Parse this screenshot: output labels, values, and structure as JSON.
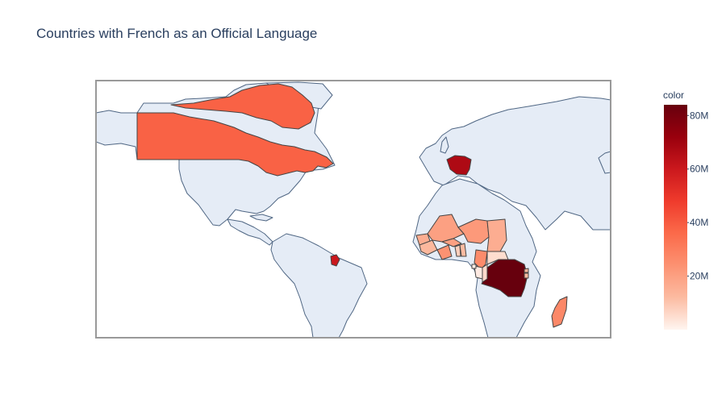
{
  "chart_data": {
    "type": "choropleth",
    "title": "Countries with French as an Official Language",
    "projection": "equirectangular",
    "colorscale": "Reds",
    "colorbar": {
      "title": "color",
      "range": [
        0,
        84000000
      ],
      "ticks": [
        {
          "value": 20000000,
          "label": "20M"
        },
        {
          "value": 40000000,
          "label": "40M"
        },
        {
          "value": 60000000,
          "label": "60M"
        },
        {
          "value": 80000000,
          "label": "80M"
        }
      ]
    },
    "colors": {
      "land": "#e5ecf6",
      "ocean": "#ffffff",
      "frame": "#999999",
      "coast": "#506784",
      "scale": [
        "#fff5f0",
        "#fcbba1",
        "#fc9272",
        "#fb6a4a",
        "#ef3b2c",
        "#cb181d",
        "#99000d",
        "#67000d"
      ]
    },
    "regions": [
      {
        "name": "Canada",
        "value": 38000000
      },
      {
        "name": "France",
        "value": 67000000
      },
      {
        "name": "French Guiana",
        "value": 60000000
      },
      {
        "name": "DR Congo",
        "value": 84000000
      },
      {
        "name": "Madagascar",
        "value": 27000000
      },
      {
        "name": "Cameroon",
        "value": 26000000
      },
      {
        "name": "Niger",
        "value": 22000000
      },
      {
        "name": "Mali",
        "value": 20000000
      },
      {
        "name": "Chad",
        "value": 16000000
      },
      {
        "name": "Burkina Faso",
        "value": 20000000
      },
      {
        "name": "Côte d'Ivoire",
        "value": 24000000
      },
      {
        "name": "Senegal",
        "value": 16000000
      },
      {
        "name": "Guinea",
        "value": 13000000
      },
      {
        "name": "Benin",
        "value": 12000000
      },
      {
        "name": "Togo",
        "value": 8000000
      },
      {
        "name": "Central African Republic",
        "value": 5000000
      },
      {
        "name": "Congo",
        "value": 5500000
      },
      {
        "name": "Gabon",
        "value": 2200000
      },
      {
        "name": "Equatorial Guinea",
        "value": 1400000
      },
      {
        "name": "Rwanda",
        "value": 13000000
      },
      {
        "name": "Burundi",
        "value": 12000000
      }
    ]
  }
}
